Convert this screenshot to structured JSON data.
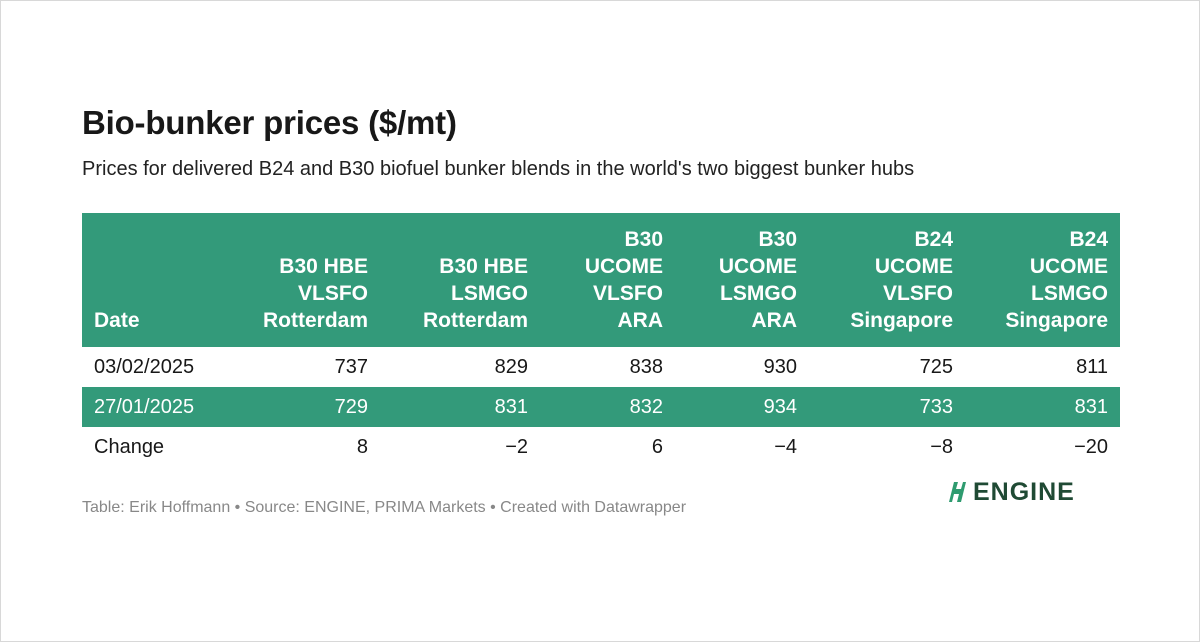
{
  "title": "Bio-bunker prices ($/mt)",
  "subtitle": "Prices for delivered B24 and B30 biofuel bunker blends in the world's two biggest bunker hubs",
  "footer": "Table: Erik Hoffmann • Source: ENGINE, PRIMA Markets • Created with Datawrapper",
  "logo": {
    "text": "ENGINE",
    "icon": "engine-logo-mark",
    "color": "#1f4a34",
    "accent": "#2e9b6f"
  },
  "colors": {
    "header_bg": "#339a7a",
    "stripe_bg": "#339a7a"
  },
  "chart_data": {
    "type": "table",
    "title": "Bio-bunker prices ($/mt)",
    "columns": [
      {
        "lines": [
          "Date"
        ]
      },
      {
        "lines": [
          "B30 HBE",
          "VLSFO",
          "Rotterdam"
        ]
      },
      {
        "lines": [
          "B30 HBE",
          "LSMGO",
          "Rotterdam"
        ]
      },
      {
        "lines": [
          "B30",
          "UCOME",
          "VLSFO",
          "ARA"
        ]
      },
      {
        "lines": [
          "B30",
          "UCOME",
          "LSMGO",
          "ARA"
        ]
      },
      {
        "lines": [
          "B24",
          "UCOME",
          "VLSFO",
          "Singapore"
        ]
      },
      {
        "lines": [
          "B24",
          "UCOME",
          "LSMGO",
          "Singapore"
        ]
      }
    ],
    "rows": [
      [
        "03/02/2025",
        "737",
        "829",
        "838",
        "930",
        "725",
        "811"
      ],
      [
        "27/01/2025",
        "729",
        "831",
        "832",
        "934",
        "733",
        "831"
      ],
      [
        "Change",
        "8",
        "−2",
        "6",
        "−4",
        "−8",
        "−20"
      ]
    ]
  }
}
